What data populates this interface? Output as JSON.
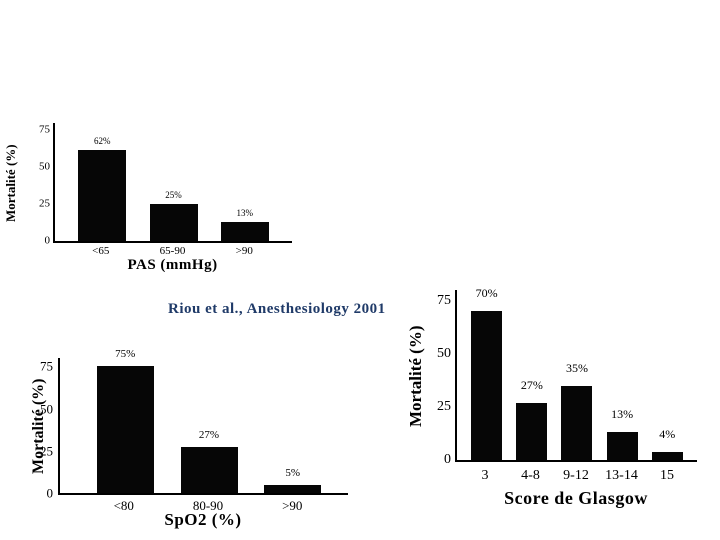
{
  "slide": {
    "citation": "Riou et al., Anesthesiology 2001",
    "citation_color": "#1F3A68",
    "bar_color": "#060606",
    "background": "#FFFFFF"
  },
  "chart_data": [
    {
      "id": "pas",
      "type": "bar",
      "title": "PAS (mmHg)",
      "xlabel": "PAS (mmHg)",
      "ylabel": "Mortalité (%)",
      "categories": [
        "<65",
        "65-90",
        ">90"
      ],
      "values": [
        62,
        25,
        13
      ],
      "value_labels": [
        "62%",
        "25%",
        "13%"
      ],
      "yticks": [
        0,
        25,
        50,
        75
      ],
      "ylim": [
        0,
        80
      ],
      "grid": false,
      "legend": "none"
    },
    {
      "id": "spo2",
      "type": "bar",
      "title": "SpO2 (%)",
      "xlabel": "SpO2 (%)",
      "ylabel": "Mortalité (%)",
      "categories": [
        "<80",
        "80-90",
        ">90"
      ],
      "values": [
        75,
        27,
        5
      ],
      "value_labels": [
        "75%",
        "27%",
        "5%"
      ],
      "yticks": [
        0,
        25,
        50,
        75
      ],
      "ylim": [
        0,
        80
      ],
      "grid": false,
      "legend": "none"
    },
    {
      "id": "glasgow",
      "type": "bar",
      "title": "Score de Glasgow",
      "xlabel": "Score de Glasgow",
      "ylabel": "Mortalité (%)",
      "categories": [
        "3",
        "4-8",
        "9-12",
        "13-14",
        "15"
      ],
      "values": [
        70,
        27,
        35,
        13,
        4
      ],
      "value_labels": [
        "70%",
        "27%",
        "35%",
        "13%",
        "4%"
      ],
      "yticks": [
        0,
        25,
        50,
        75
      ],
      "ylim": [
        0,
        80
      ],
      "grid": false,
      "legend": "none"
    }
  ]
}
